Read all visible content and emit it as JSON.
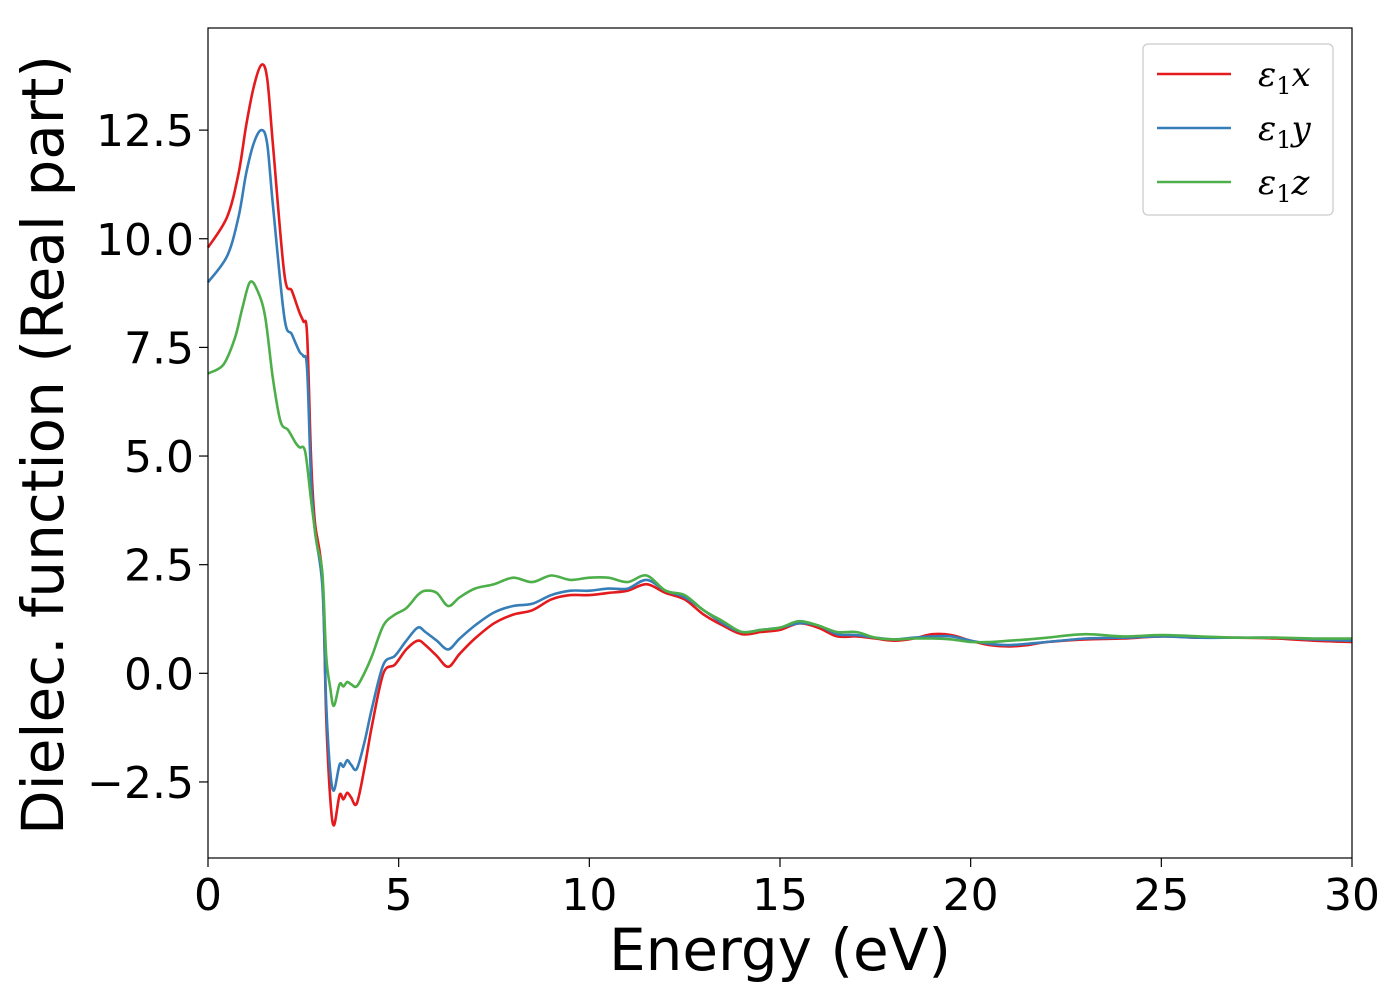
{
  "chart_data": {
    "type": "line",
    "title": "",
    "xlabel": "Energy (eV)",
    "ylabel": "Dielec. function (Real part)",
    "xlim": [
      0,
      30
    ],
    "ylim": [
      -4.25,
      14.85
    ],
    "xticks": [
      0,
      5,
      10,
      15,
      20,
      25,
      30
    ],
    "xtick_labels": [
      "0",
      "5",
      "10",
      "15",
      "20",
      "25",
      "30"
    ],
    "yticks": [
      -2.5,
      0,
      2.5,
      5,
      7.5,
      10,
      12.5
    ],
    "ytick_labels": [
      "−2.5",
      "0.0",
      "2.5",
      "5.0",
      "7.5",
      "10.0",
      "12.5"
    ],
    "grid": false,
    "legend_position": "top-right",
    "series": [
      {
        "name": "ε1x",
        "legend_main": "ε",
        "legend_sub": "1",
        "legend_var": "x",
        "color": "#e41a1c",
        "x": [
          0,
          0.5,
          0.8,
          1.0,
          1.2,
          1.4,
          1.55,
          1.7,
          2.0,
          2.2,
          2.4,
          2.5,
          2.6,
          2.7,
          2.8,
          3.0,
          3.1,
          3.2,
          3.3,
          3.45,
          3.55,
          3.65,
          3.75,
          3.9,
          4.1,
          4.3,
          4.6,
          4.9,
          5.2,
          5.5,
          5.7,
          6.0,
          6.3,
          6.6,
          7.0,
          7.5,
          8.0,
          8.5,
          9.0,
          9.5,
          10.0,
          10.5,
          11.0,
          11.5,
          12.0,
          12.5,
          13.0,
          13.5,
          14.0,
          14.5,
          15.0,
          15.5,
          16.0,
          16.5,
          17.0,
          17.5,
          18.0,
          18.5,
          19.0,
          19.5,
          20.0,
          20.5,
          21.0,
          21.5,
          22.0,
          23.0,
          24.0,
          25.0,
          26.0,
          27.0,
          28.0,
          29.0,
          30.0
        ],
        "values": [
          9.8,
          10.5,
          11.5,
          12.6,
          13.5,
          14.0,
          13.7,
          12.2,
          9.2,
          8.8,
          8.3,
          8.1,
          7.8,
          5.0,
          3.5,
          2.2,
          -1.0,
          -2.8,
          -3.5,
          -2.8,
          -2.9,
          -2.75,
          -2.85,
          -3.0,
          -2.2,
          -1.2,
          0.0,
          0.2,
          0.55,
          0.75,
          0.65,
          0.4,
          0.15,
          0.45,
          0.8,
          1.15,
          1.35,
          1.45,
          1.7,
          1.8,
          1.8,
          1.85,
          1.9,
          2.05,
          1.85,
          1.7,
          1.35,
          1.1,
          0.9,
          0.95,
          1.0,
          1.15,
          1.05,
          0.85,
          0.85,
          0.8,
          0.75,
          0.8,
          0.9,
          0.88,
          0.75,
          0.65,
          0.62,
          0.65,
          0.72,
          0.78,
          0.8,
          0.85,
          0.82,
          0.82,
          0.8,
          0.75,
          0.72
        ]
      },
      {
        "name": "ε1y",
        "legend_main": "ε",
        "legend_sub": "1",
        "legend_var": "y",
        "color": "#377eb8",
        "x": [
          0,
          0.5,
          0.8,
          1.0,
          1.2,
          1.4,
          1.55,
          1.7,
          2.0,
          2.2,
          2.4,
          2.5,
          2.6,
          2.7,
          2.8,
          3.0,
          3.1,
          3.2,
          3.3,
          3.45,
          3.55,
          3.65,
          3.75,
          3.9,
          4.1,
          4.3,
          4.6,
          4.9,
          5.2,
          5.5,
          5.7,
          6.0,
          6.3,
          6.6,
          7.0,
          7.5,
          8.0,
          8.5,
          9.0,
          9.5,
          10.0,
          10.5,
          11.0,
          11.5,
          12.0,
          12.5,
          13.0,
          13.5,
          14.0,
          14.5,
          15.0,
          15.5,
          16.0,
          16.5,
          17.0,
          17.5,
          18.0,
          18.5,
          19.0,
          19.5,
          20.0,
          20.5,
          21.0,
          21.5,
          22.0,
          23.0,
          24.0,
          25.0,
          26.0,
          27.0,
          28.0,
          29.0,
          30.0
        ],
        "values": [
          9.0,
          9.6,
          10.5,
          11.5,
          12.2,
          12.5,
          12.2,
          10.8,
          8.2,
          7.8,
          7.4,
          7.3,
          7.0,
          4.5,
          3.3,
          2.0,
          -0.7,
          -2.2,
          -2.7,
          -2.1,
          -2.15,
          -2.0,
          -2.1,
          -2.2,
          -1.6,
          -0.8,
          0.2,
          0.4,
          0.75,
          1.05,
          0.95,
          0.75,
          0.55,
          0.8,
          1.1,
          1.4,
          1.55,
          1.6,
          1.8,
          1.9,
          1.9,
          1.95,
          1.95,
          2.15,
          1.9,
          1.75,
          1.45,
          1.15,
          0.95,
          1.0,
          1.05,
          1.15,
          1.1,
          0.9,
          0.88,
          0.82,
          0.78,
          0.82,
          0.85,
          0.85,
          0.75,
          0.68,
          0.65,
          0.68,
          0.72,
          0.8,
          0.82,
          0.85,
          0.82,
          0.82,
          0.82,
          0.78,
          0.75
        ]
      },
      {
        "name": "ε1z",
        "legend_main": "ε",
        "legend_sub": "1",
        "legend_var": "z",
        "color": "#4daf4a",
        "x": [
          0,
          0.4,
          0.7,
          0.9,
          1.1,
          1.3,
          1.5,
          1.7,
          1.9,
          2.1,
          2.3,
          2.4,
          2.55,
          2.7,
          2.85,
          3.0,
          3.1,
          3.2,
          3.3,
          3.45,
          3.55,
          3.65,
          3.75,
          3.9,
          4.1,
          4.3,
          4.6,
          4.9,
          5.2,
          5.5,
          5.7,
          6.0,
          6.3,
          6.6,
          7.0,
          7.5,
          8.0,
          8.5,
          9.0,
          9.5,
          10.0,
          10.5,
          11.0,
          11.5,
          12.0,
          12.5,
          13.0,
          13.5,
          14.0,
          14.5,
          15.0,
          15.5,
          16.0,
          16.5,
          17.0,
          17.5,
          18.0,
          18.5,
          19.0,
          19.5,
          20.0,
          20.5,
          21.0,
          21.5,
          22.0,
          23.0,
          24.0,
          25.0,
          26.0,
          27.0,
          28.0,
          29.0,
          30.0
        ],
        "values": [
          6.9,
          7.1,
          7.7,
          8.4,
          9.0,
          8.8,
          8.2,
          6.8,
          5.8,
          5.6,
          5.3,
          5.2,
          5.1,
          4.0,
          3.0,
          2.3,
          0.4,
          -0.3,
          -0.75,
          -0.25,
          -0.3,
          -0.2,
          -0.25,
          -0.3,
          0.0,
          0.4,
          1.1,
          1.35,
          1.5,
          1.8,
          1.9,
          1.85,
          1.55,
          1.75,
          1.95,
          2.05,
          2.2,
          2.1,
          2.25,
          2.15,
          2.2,
          2.2,
          2.1,
          2.25,
          1.9,
          1.8,
          1.45,
          1.2,
          0.95,
          1.0,
          1.05,
          1.2,
          1.1,
          0.95,
          0.95,
          0.82,
          0.78,
          0.8,
          0.8,
          0.78,
          0.72,
          0.72,
          0.75,
          0.78,
          0.82,
          0.9,
          0.85,
          0.88,
          0.85,
          0.82,
          0.82,
          0.8,
          0.8
        ]
      }
    ]
  }
}
